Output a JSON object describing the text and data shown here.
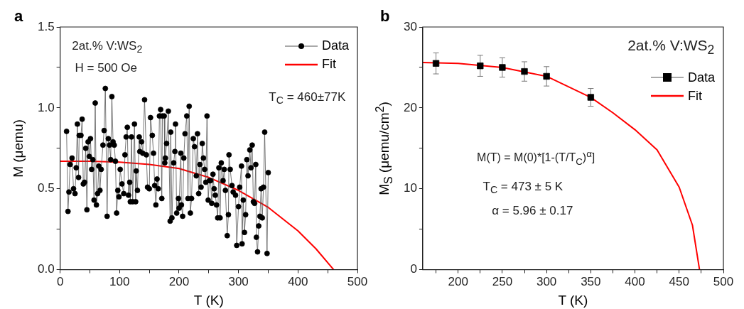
{
  "chart_data": [
    {
      "type": "line",
      "title": "a",
      "xlabel": "T (K)",
      "ylabel": "M (μemu)",
      "xlim": [
        0,
        500
      ],
      "xticks": [
        0,
        {
          "value": 50,
          "label": null
        },
        100,
        {
          "value": 150,
          "label": null
        },
        200,
        {
          "value": 250,
          "label": null
        },
        300,
        {
          "value": 350,
          "label": null
        },
        400,
        {
          "value": 450,
          "label": null
        },
        500
      ],
      "ylim": [
        0,
        1.5
      ],
      "yticks": [
        {
          "value": 0,
          "label": "0.0"
        },
        {
          "value": 0.25,
          "label": null
        },
        {
          "value": 0.5,
          "label": "0.5"
        },
        {
          "value": 0.75,
          "label": null
        },
        {
          "value": 1,
          "label": "1.0"
        },
        {
          "value": 1.25,
          "label": null
        },
        {
          "value": 1.5,
          "label": "1.5"
        }
      ],
      "grid": false,
      "legend": "top right",
      "annotations": [
        "2at.% V:WS$_{2}$",
        "H = 500 Oe",
        "T$_{C}$ = 460±77K"
      ],
      "series": [
        {
          "name": "Data",
          "color": "#000000",
          "marker": "circle",
          "line_style": "solid",
          "x": [
            10.8,
            13.2,
            14.8,
            16.8,
            20,
            22.5,
            25,
            27,
            29,
            31,
            32,
            35,
            37,
            39,
            41,
            43,
            45,
            47,
            49,
            51,
            53,
            55,
            57,
            59,
            61,
            63,
            65,
            67,
            69,
            72,
            74,
            76,
            79,
            81,
            83,
            85,
            87,
            89,
            91,
            93,
            95,
            97,
            99,
            101,
            104,
            107,
            109,
            111,
            113,
            115,
            117,
            118,
            120,
            122,
            125,
            127,
            128,
            130,
            133,
            134,
            137,
            139,
            142,
            145,
            147,
            150,
            152,
            155,
            157,
            159,
            161,
            163,
            165,
            167,
            169,
            171,
            172,
            175,
            176,
            177,
            179,
            182,
            185,
            186,
            188,
            191,
            193,
            194,
            196,
            199,
            200,
            203,
            204,
            206,
            208,
            210,
            213,
            215,
            217,
            219,
            221,
            224,
            226,
            229,
            231,
            233,
            235,
            237,
            239,
            241,
            243,
            245,
            247,
            249,
            251,
            253,
            255,
            257,
            259,
            261,
            263,
            265,
            267,
            269,
            271,
            274,
            276,
            278,
            281,
            283,
            284,
            286,
            289,
            291,
            295,
            297,
            300,
            302,
            305,
            306,
            308,
            310,
            312,
            314,
            316,
            319,
            321,
            323,
            325,
            327,
            329,
            330,
            332,
            334,
            336,
            338,
            340,
            342,
            344,
            348,
            350
          ],
          "values": [
            0.855,
            0.36,
            0.48,
            0.65,
            0.69,
            0.5,
            0.47,
            0.63,
            0.9,
            0.57,
            0.83,
            0.83,
            0.93,
            0.53,
            0.54,
            0.75,
            0.37,
            0.79,
            0.7,
            0.81,
            0.62,
            0.68,
            0.43,
            1.03,
            0.4,
            0.47,
            0.64,
            0.49,
            0.62,
            0.77,
            0.86,
            1.12,
            0.33,
            0.81,
            0.77,
            0.68,
            1.07,
            0.79,
            0.77,
            0.67,
            0.35,
            0.49,
            0.45,
            0.62,
            0.53,
            0.47,
            0.71,
            0.82,
            0.88,
            0.46,
            0.54,
            0.42,
            0.82,
            0.42,
            0.9,
            0.42,
            0.61,
            0.49,
            0.82,
            0.73,
            0.79,
            0.72,
            1.05,
            0.71,
            0.51,
            0.5,
            0.94,
            0.83,
            0.72,
            0.52,
            0.4,
            0.56,
            0.5,
            0.95,
            0.99,
            0.44,
            0.95,
            0.95,
            0.66,
            0.69,
            0.78,
            0.98,
            0.3,
            0.85,
            0.32,
            0.66,
            0.73,
            0.9,
            0.35,
            0.44,
            0.38,
            0.72,
            0.4,
            0.33,
            0.69,
            0.84,
            0.95,
            0.44,
            1.01,
            0.35,
            0.44,
            0.81,
            0.76,
            0.58,
            0.84,
            0.47,
            0.65,
            0.51,
            0.78,
            0.69,
            0.62,
            0.54,
            0.95,
            0.43,
            0.55,
            0.55,
            0.41,
            0.59,
            0.5,
            0.46,
            0.4,
            0.32,
            0.63,
            0.32,
            0.66,
            0.55,
            0.62,
            0.49,
            0.21,
            0.34,
            0.71,
            0.62,
            0.52,
            0.48,
            0.46,
            0.15,
            0.39,
            0.51,
            0.64,
            0.16,
            0.43,
            0.23,
            0.34,
            0.68,
            0.58,
            0.74,
            0.63,
            0.77,
            0.42,
            0.41,
            0.65,
            0.2,
            0.11,
            0.27,
            0.33,
            0.5,
            0.32,
            0.51,
            0.85,
            0.1,
            0.6
          ]
        },
        {
          "name": "Fit",
          "color": "#ff0000",
          "marker": "none",
          "line_style": "solid",
          "x": [
            0,
            50,
            100,
            150,
            200,
            250,
            300,
            350,
            400,
            430,
            460
          ],
          "values": [
            0.67,
            0.67,
            0.665,
            0.65,
            0.625,
            0.57,
            0.49,
            0.385,
            0.24,
            0.13,
            0
          ]
        }
      ]
    },
    {
      "type": "line",
      "title": "b",
      "xlabel": "T (K)",
      "ylabel": "M$_{S}$ (μemu/cm$^{2}$)",
      "xlim": [
        160,
        500
      ],
      "xticks": [
        {
          "value": 175,
          "label": null
        },
        200,
        {
          "value": 225,
          "label": null
        },
        250,
        {
          "value": 275,
          "label": null
        },
        300,
        {
          "value": 325,
          "label": null
        },
        350,
        {
          "value": 375,
          "label": null
        },
        400,
        {
          "value": 425,
          "label": null
        },
        450,
        {
          "value": 475,
          "label": null
        },
        500
      ],
      "ylim": [
        0,
        30
      ],
      "yticks": [
        0,
        {
          "value": 5,
          "label": null
        },
        10,
        {
          "value": 15,
          "label": null
        },
        20,
        {
          "value": 25,
          "label": null
        },
        30
      ],
      "grid": false,
      "legend": "top right",
      "annotations": [
        "2at.% V:WS$_{2}$",
        "M(T) = M(0)*[1-(T/T$_{C}$)$^{α}$]",
        "T$_{C}$ = 473 ± 5 K",
        "α = 5.96 ± 0.17"
      ],
      "series": [
        {
          "name": "Data",
          "type": "scatter",
          "color": "#000000",
          "marker": "square",
          "x": [
            175,
            225,
            250,
            275,
            300,
            350
          ],
          "values": [
            25.5,
            25.2,
            25.0,
            24.5,
            23.9,
            21.3
          ],
          "errors": [
            1.3,
            1.3,
            1.2,
            1.2,
            1.2,
            1.1
          ]
        },
        {
          "name": "Fit",
          "color": "#ff0000",
          "marker": "none",
          "line_style": "solid",
          "x": [
            160,
            200,
            250,
            300,
            350,
            375,
            400,
            425,
            450,
            465,
            473
          ],
          "values": [
            25.6,
            25.5,
            25.0,
            23.9,
            21.3,
            19.4,
            17.3,
            14.8,
            10.2,
            5.5,
            0
          ]
        }
      ]
    }
  ]
}
